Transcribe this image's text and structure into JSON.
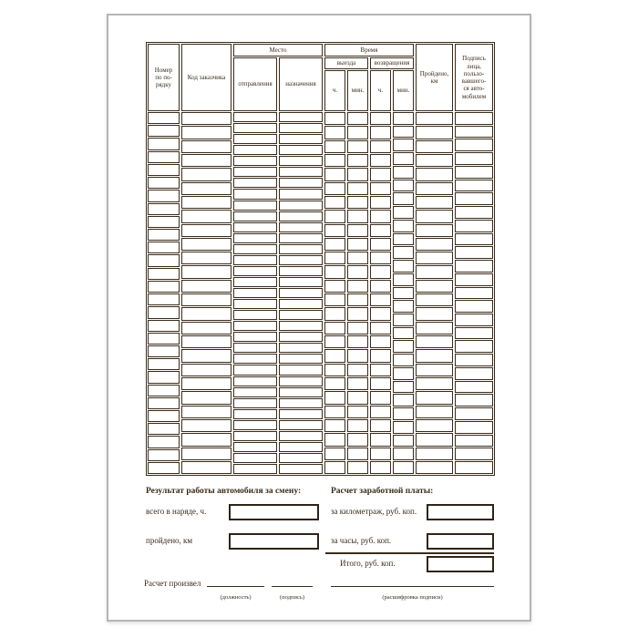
{
  "colors": {
    "ink": "#3a2b1a",
    "box_border": "#2f2315",
    "page_border": "#b5b5b5",
    "page_background": "#ffffff"
  },
  "table": {
    "header": {
      "order": "Номер\nпо по-\nрядку",
      "customer_code": "Код заказчика",
      "place_group": "Место",
      "place_depart": "отправления",
      "place_dest": "назначения",
      "time_group": "Время",
      "time_out": "выезда",
      "time_return": "возвращения",
      "out_hours": "ч.",
      "out_minutes": "мин.",
      "ret_hours": "ч.",
      "ret_minutes": "мин.",
      "distance": "Пройдено,\nкм",
      "signature": "Подпись\nлица,\nпользо-\nвавшего-\nся авто-\nмобилем"
    },
    "row_counts": {
      "order": 28,
      "customer": 26,
      "depart": 33,
      "dest": 33,
      "out_h": 26,
      "out_m": 26,
      "ret_h": 26,
      "ret_m": 27,
      "km": 26,
      "sign": 27
    }
  },
  "results": {
    "heading": "Результат работы автомобиля за смену:",
    "rows": [
      {
        "label": "всего в наряде, ч.",
        "value": ""
      },
      {
        "label": "пройдено, км",
        "value": ""
      }
    ]
  },
  "payroll": {
    "heading": "Расчет заработной платы:",
    "rows": [
      {
        "label": "за километраж, руб. коп.",
        "value": ""
      },
      {
        "label": "за часы, руб. коп.",
        "value": ""
      }
    ],
    "total_label": "Итого, руб. коп.",
    "total_value": ""
  },
  "footer": {
    "calc_label": "Расчет произвел",
    "sig_fields": [
      "(должность)",
      "(подпись)",
      "(расшифровка подписи)"
    ]
  }
}
